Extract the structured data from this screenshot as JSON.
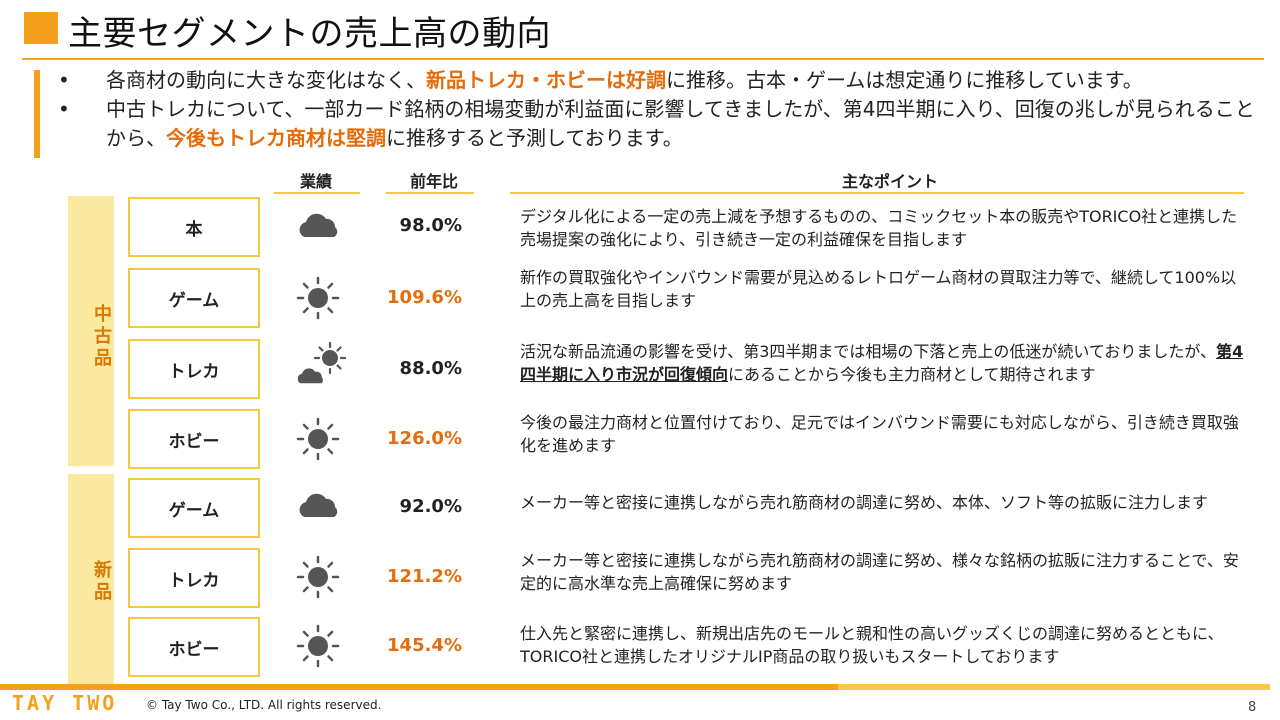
{
  "title": "主要セグメントの売上高の動向",
  "bullets": [
    {
      "marker": "•",
      "parts": [
        {
          "text": "各商材の動向に大きな変化はなく、",
          "hl": false
        },
        {
          "text": "新品トレカ・ホビーは好調",
          "hl": true
        },
        {
          "text": "に推移。古本・ゲームは想定通りに推移しています。",
          "hl": false
        }
      ]
    },
    {
      "marker": "•",
      "parts": [
        {
          "text": "中古トレカについて、一部カード銘柄の相場変動が利益面に影響してきましたが、第4四半期に入り、回復の兆しが見られることから、",
          "hl": false
        },
        {
          "text": "今後もトレカ商材は堅調",
          "hl": true
        },
        {
          "text": "に推移すると予測しております。",
          "hl": false
        }
      ]
    }
  ],
  "headers": {
    "performance": "業績",
    "yoy": "前年比",
    "points": "主なポイント"
  },
  "groups": {
    "used": "中古品",
    "new": "新品"
  },
  "colors": {
    "accent": "#f5a01a",
    "highlight": "#e46c0a",
    "group_bg": "#fbe9a0",
    "icon_gray": "#555555"
  },
  "rows": [
    {
      "category": "本",
      "weather": "cloud-icon",
      "yoy": "98.0%",
      "yoy_color": "#222222",
      "point": "デジタル化による一定の売上減を予想するものの、コミックセット本の販売やTORICO社と連携した売場提案の強化により、引き続き一定の利益確保を目指します"
    },
    {
      "category": "ゲーム",
      "weather": "sun-icon",
      "yoy": "109.6%",
      "yoy_color": "#e46c0a",
      "point": "新作の買取強化やインバウンド需要が見込めるレトロゲーム商材の買取注力等で、継続して100%以上の売上高を目指します"
    },
    {
      "category": "トレカ",
      "weather": "sun-behind-cloud-icon",
      "yoy": "88.0%",
      "yoy_color": "#222222",
      "point_pre": "活況な新品流通の影響を受け、第3四半期までは相場の下落と売上の低迷が続いておりましたが、",
      "point_ul": "第4四半期に入り市況が回復傾向",
      "point_post": "にあることから今後も主力商材として期待されます"
    },
    {
      "category": "ホビー",
      "weather": "sun-icon",
      "yoy": "126.0%",
      "yoy_color": "#e46c0a",
      "point": "今後の最注力商材と位置付けており、足元ではインバウンド需要にも対応しながら、引き続き買取強化を進めます"
    },
    {
      "category": "ゲーム",
      "weather": "cloud-icon",
      "yoy": "92.0%",
      "yoy_color": "#222222",
      "point": "メーカー等と密接に連携しながら売れ筋商材の調達に努め、本体、ソフト等の拡販に注力します"
    },
    {
      "category": "トレカ",
      "weather": "sun-icon",
      "yoy": "121.2%",
      "yoy_color": "#e46c0a",
      "point": "メーカー等と密接に連携しながら売れ筋商材の調達に努め、様々な銘柄の拡販に注力することで、安定的に高水準な売上高確保に努めます"
    },
    {
      "category": "ホビー",
      "weather": "sun-icon",
      "yoy": "145.4%",
      "yoy_color": "#e46c0a",
      "point": "仕入先と緊密に連携し、新規出店先のモールと親和性の高いグッズくじの調達に努めるとともに、TORICO社と連携したオリジナルIP商品の取り扱いもスタートしております"
    }
  ],
  "footer": {
    "logo": "TAY TWO",
    "copyright": "© Tay Two Co., LTD. All rights reserved.",
    "page": "8"
  }
}
